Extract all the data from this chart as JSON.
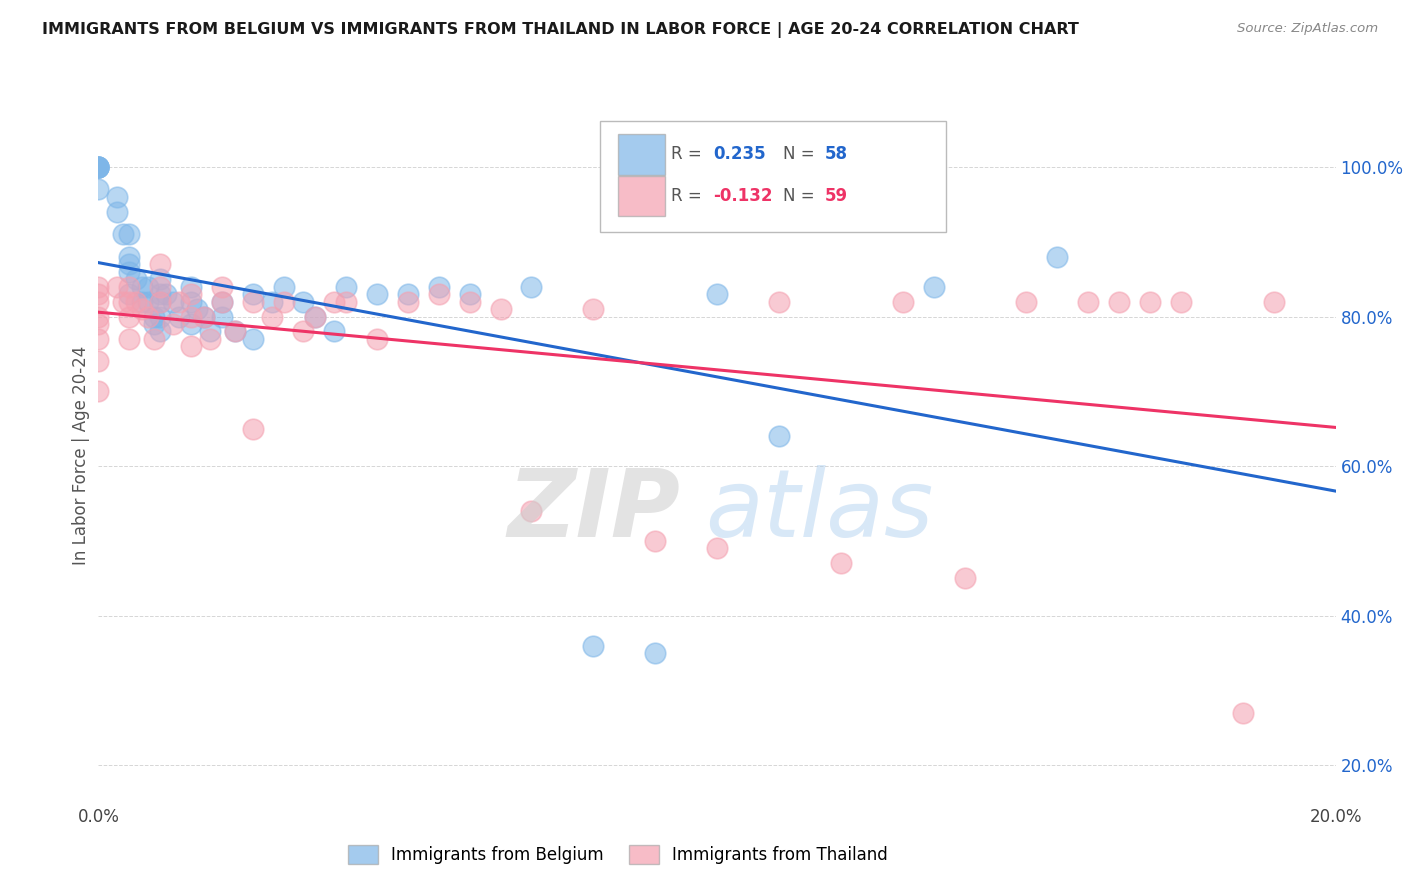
{
  "title": "IMMIGRANTS FROM BELGIUM VS IMMIGRANTS FROM THAILAND IN LABOR FORCE | AGE 20-24 CORRELATION CHART",
  "source_text": "Source: ZipAtlas.com",
  "ylabel": "In Labor Force | Age 20-24",
  "legend_labels": [
    "Immigrants from Belgium",
    "Immigrants from Thailand"
  ],
  "belgium_r": 0.235,
  "belgium_n": 58,
  "thailand_r": -0.132,
  "thailand_n": 59,
  "belgium_color": "#7EB6E8",
  "thailand_color": "#F4A0B0",
  "belgium_line_color": "#2266CC",
  "thailand_line_color": "#EE3366",
  "background_color": "#FFFFFF",
  "xlim": [
    0.0,
    0.2
  ],
  "ylim": [
    0.15,
    1.08
  ],
  "x_tick_positions": [
    0.0,
    0.2
  ],
  "x_tick_labels": [
    "0.0%",
    "20.0%"
  ],
  "y_tick_values": [
    0.2,
    0.4,
    0.6,
    0.8,
    1.0
  ],
  "y_tick_labels": [
    "20.0%",
    "40.0%",
    "60.0%",
    "80.0%",
    "100.0%"
  ],
  "belgium_x": [
    0.0,
    0.0,
    0.0,
    0.0,
    0.0,
    0.0,
    0.0,
    0.003,
    0.003,
    0.004,
    0.005,
    0.005,
    0.005,
    0.005,
    0.005,
    0.006,
    0.007,
    0.007,
    0.008,
    0.008,
    0.009,
    0.009,
    0.01,
    0.01,
    0.01,
    0.01,
    0.01,
    0.011,
    0.012,
    0.013,
    0.015,
    0.015,
    0.015,
    0.016,
    0.017,
    0.018,
    0.02,
    0.02,
    0.022,
    0.025,
    0.025,
    0.028,
    0.03,
    0.033,
    0.035,
    0.038,
    0.04,
    0.045,
    0.05,
    0.055,
    0.06,
    0.07,
    0.08,
    0.09,
    0.1,
    0.11,
    0.135,
    0.155
  ],
  "belgium_y": [
    1.0,
    1.0,
    1.0,
    1.0,
    1.0,
    1.0,
    0.97,
    0.96,
    0.94,
    0.91,
    0.91,
    0.88,
    0.87,
    0.86,
    0.83,
    0.85,
    0.84,
    0.82,
    0.84,
    0.82,
    0.8,
    0.79,
    0.85,
    0.83,
    0.82,
    0.8,
    0.78,
    0.83,
    0.82,
    0.8,
    0.84,
    0.82,
    0.79,
    0.81,
    0.8,
    0.78,
    0.82,
    0.8,
    0.78,
    0.83,
    0.77,
    0.82,
    0.84,
    0.82,
    0.8,
    0.78,
    0.84,
    0.83,
    0.83,
    0.84,
    0.83,
    0.84,
    0.36,
    0.35,
    0.83,
    0.64,
    0.84,
    0.88
  ],
  "thailand_x": [
    0.0,
    0.0,
    0.0,
    0.0,
    0.0,
    0.0,
    0.0,
    0.0,
    0.003,
    0.004,
    0.005,
    0.005,
    0.005,
    0.005,
    0.006,
    0.007,
    0.008,
    0.009,
    0.01,
    0.01,
    0.01,
    0.012,
    0.013,
    0.015,
    0.015,
    0.015,
    0.017,
    0.018,
    0.02,
    0.02,
    0.022,
    0.025,
    0.025,
    0.028,
    0.03,
    0.033,
    0.035,
    0.038,
    0.04,
    0.045,
    0.05,
    0.055,
    0.06,
    0.065,
    0.07,
    0.08,
    0.09,
    0.1,
    0.11,
    0.12,
    0.13,
    0.14,
    0.15,
    0.16,
    0.165,
    0.17,
    0.175,
    0.185,
    0.19
  ],
  "thailand_y": [
    0.84,
    0.83,
    0.82,
    0.8,
    0.79,
    0.77,
    0.74,
    0.7,
    0.84,
    0.82,
    0.84,
    0.82,
    0.8,
    0.77,
    0.82,
    0.81,
    0.8,
    0.77,
    0.87,
    0.84,
    0.82,
    0.79,
    0.82,
    0.83,
    0.8,
    0.76,
    0.8,
    0.77,
    0.84,
    0.82,
    0.78,
    0.82,
    0.65,
    0.8,
    0.82,
    0.78,
    0.8,
    0.82,
    0.82,
    0.77,
    0.82,
    0.83,
    0.82,
    0.81,
    0.54,
    0.81,
    0.5,
    0.49,
    0.82,
    0.47,
    0.82,
    0.45,
    0.82,
    0.82,
    0.82,
    0.82,
    0.82,
    0.27,
    0.82
  ]
}
